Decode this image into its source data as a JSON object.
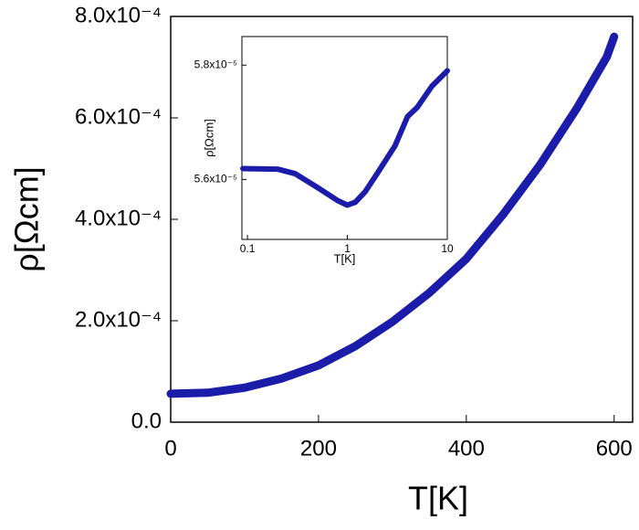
{
  "chart_data": [
    {
      "type": "line",
      "xlabel": "T[K]",
      "ylabel": "ρ[Ωcm]",
      "x": [
        0,
        50,
        100,
        150,
        200,
        250,
        300,
        350,
        400,
        450,
        500,
        550,
        590,
        600
      ],
      "series": [
        {
          "color": "#1c1caa",
          "values": [
            5.6e-05,
            5.8e-05,
            6.8e-05,
            8.6e-05,
            0.000112,
            0.00015,
            0.000198,
            0.000255,
            0.000322,
            0.00041,
            0.000508,
            0.00062,
            0.00072,
            0.00076
          ]
        }
      ],
      "xlim": [
        0,
        625
      ],
      "xticks": [
        0,
        200,
        400,
        600
      ],
      "ylim": [
        0,
        0.0008
      ],
      "yticks": [
        {
          "value": 0,
          "label": "0.0"
        },
        {
          "value": 0.0002,
          "label": "2.0x10⁻⁴"
        },
        {
          "value": 0.0004,
          "label": "4.0x10⁻⁴"
        },
        {
          "value": 0.0006,
          "label": "6.0x10⁻⁴"
        },
        {
          "value": 0.0008,
          "label": "8.0x10⁻⁴"
        }
      ]
    },
    {
      "type": "line",
      "xlabel": "T[K]",
      "ylabel": "ρ[Ωcm]",
      "xscale": "log",
      "x": [
        0.09,
        0.2,
        0.3,
        0.5,
        0.8,
        1.0,
        1.2,
        1.5,
        2,
        3,
        4,
        5,
        7,
        10
      ],
      "series": [
        {
          "color": "#1c1caa",
          "values": [
            5.619e-05,
            5.618e-05,
            5.61e-05,
            5.586e-05,
            5.563e-05,
            5.555e-05,
            5.56e-05,
            5.578e-05,
            5.611e-05,
            5.659e-05,
            5.71e-05,
            5.726e-05,
            5.763e-05,
            5.79e-05
          ]
        }
      ],
      "xlim": [
        0.088,
        10
      ],
      "xticks": [
        0.1,
        1,
        10
      ],
      "ylim": [
        5.495e-05,
        5.85e-05
      ],
      "yticks": [
        {
          "value": 5.6e-05,
          "label": "5.6x10⁻⁵"
        },
        {
          "value": 5.8e-05,
          "label": "5.8x10⁻⁵"
        }
      ]
    }
  ]
}
